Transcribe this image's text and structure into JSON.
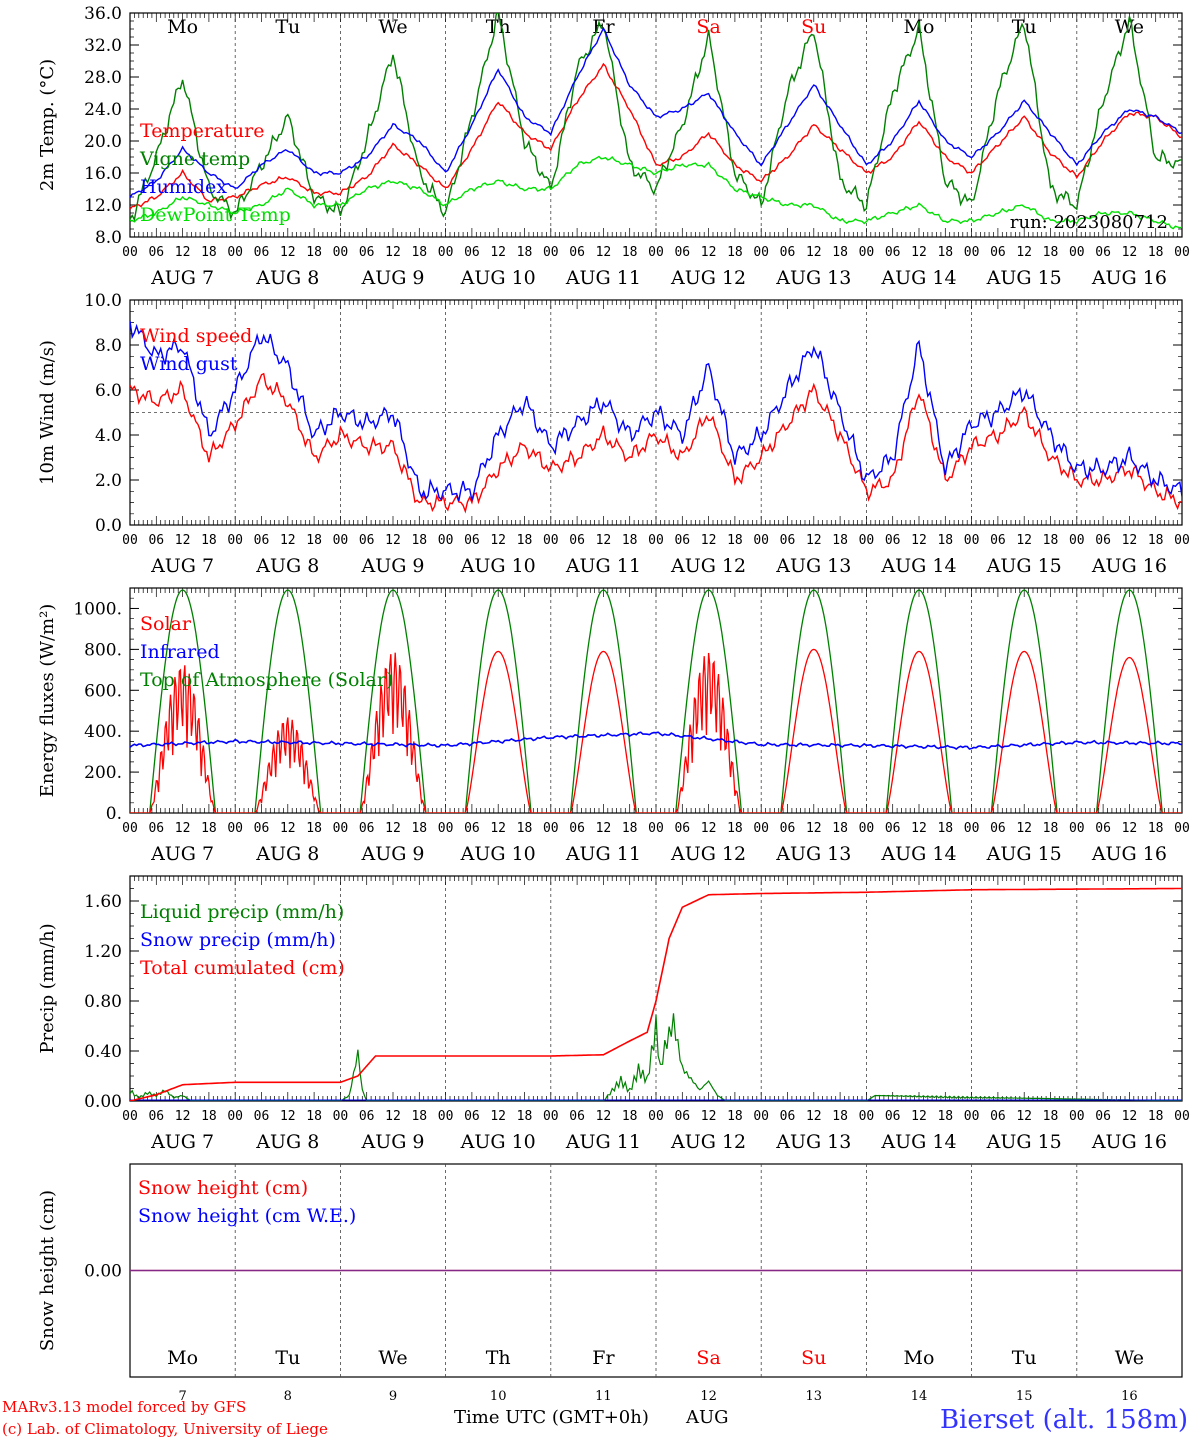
{
  "days": [
    "Mo",
    "Tu",
    "We",
    "Th",
    "Fr",
    "Sa",
    "Su",
    "Mo",
    "Tu",
    "We"
  ],
  "weekend_days": [
    "Sa",
    "Su"
  ],
  "dates": [
    "AUG  7",
    "AUG  8",
    "AUG  9",
    "AUG 10",
    "AUG 11",
    "AUG 12",
    "AUG 13",
    "AUG 14",
    "AUG 15",
    "AUG 16"
  ],
  "day_numbers": [
    "7",
    "8",
    "9",
    "10",
    "11",
    "12",
    "13",
    "14",
    "15",
    "16"
  ],
  "hour_labels": [
    "00",
    "06",
    "12",
    "18"
  ],
  "colors": {
    "red": "#ff0000",
    "green": "#008000",
    "blue": "#0000ff",
    "lime": "#00e000",
    "purple": "#7030a0",
    "weekend": "#ff0000"
  },
  "chart_data": [
    {
      "type": "line",
      "ylabel": "2m Temp. (°C)",
      "ylim": [
        8,
        36
      ],
      "yticks": [
        "8.0",
        "12.0",
        "16.0",
        "20.0",
        "24.0",
        "28.0",
        "32.0",
        "36.0"
      ],
      "annotation": "run: 2023080712",
      "legend": [
        "Temperature",
        "Vigne temp",
        "Humidex",
        "DewPoint Temp"
      ],
      "x_hours": [
        0,
        6,
        12,
        18,
        24,
        30,
        36,
        42,
        48,
        54,
        60,
        66,
        72,
        78,
        84,
        90,
        96,
        102,
        108,
        114,
        120,
        126,
        132,
        138,
        144,
        150,
        156,
        162,
        168,
        174,
        180,
        186,
        192,
        198,
        204,
        210,
        216,
        222,
        228,
        234,
        240
      ],
      "series": [
        {
          "name": "Temperature",
          "color": "red",
          "values": [
            11.5,
            13,
            16,
            12.5,
            13,
            14.5,
            15.5,
            13.5,
            13.5,
            15.5,
            19.5,
            17,
            14,
            19,
            25,
            21,
            19,
            25,
            29.5,
            24,
            17,
            18,
            21,
            17,
            15,
            18,
            22,
            19,
            16,
            18,
            22.5,
            18,
            16,
            19.5,
            23,
            18.5,
            15.5,
            20,
            23.5,
            23,
            20.5
          ]
        },
        {
          "name": "Vigne temp",
          "color": "green",
          "values": [
            10,
            18,
            28,
            14,
            11,
            17,
            23,
            13,
            11,
            20,
            31,
            16,
            11,
            23,
            36,
            20,
            14,
            29,
            35,
            17,
            14,
            22,
            33,
            16,
            12,
            26,
            34,
            15,
            12,
            26,
            34,
            15,
            12,
            26,
            35,
            14,
            12,
            25,
            35,
            18,
            17
          ]
        },
        {
          "name": "Humidex",
          "color": "blue",
          "values": [
            13,
            15,
            19,
            16,
            14,
            17,
            19,
            16,
            16,
            18,
            22,
            20,
            16,
            22,
            29,
            23,
            21,
            28,
            34,
            27,
            23,
            24,
            26,
            21,
            17,
            22,
            27,
            22,
            17,
            20,
            25,
            20,
            18,
            21,
            25,
            21,
            17,
            21,
            24,
            23,
            21
          ]
        },
        {
          "name": "DewPoint Temp",
          "color": "lime",
          "values": [
            10,
            11,
            13,
            12,
            11,
            12,
            14,
            12,
            12,
            14,
            15,
            14,
            12,
            14,
            15,
            14,
            14,
            17,
            18,
            17,
            16,
            17,
            17,
            14,
            13,
            12,
            12,
            10,
            10,
            11,
            12,
            10,
            10,
            11,
            12,
            10,
            10,
            11,
            11,
            10,
            9
          ]
        }
      ]
    },
    {
      "type": "line",
      "ylabel": "10m Wind (m/s)",
      "ylim": [
        0,
        10
      ],
      "yticks": [
        "0.0",
        "2.0",
        "4.0",
        "6.0",
        "8.0",
        "10.0"
      ],
      "reference_line": 5,
      "legend": [
        "Wind speed",
        "Wind gust"
      ],
      "x_hours": [
        0,
        6,
        12,
        18,
        24,
        30,
        36,
        42,
        48,
        54,
        60,
        66,
        72,
        78,
        84,
        90,
        96,
        102,
        108,
        114,
        120,
        126,
        132,
        138,
        144,
        150,
        156,
        162,
        168,
        174,
        180,
        186,
        192,
        198,
        204,
        210,
        216,
        222,
        228,
        234,
        240
      ],
      "series": [
        {
          "name": "Wind speed",
          "color": "red",
          "values": [
            6,
            5.5,
            6,
            3,
            4.5,
            6.5,
            5.5,
            3,
            4,
            3.5,
            3.5,
            1,
            1,
            1,
            2.5,
            3.5,
            2.5,
            3,
            4,
            3,
            4,
            3,
            5,
            2,
            3,
            4.5,
            6,
            4,
            1.5,
            2,
            6,
            2,
            3.5,
            4,
            5,
            3,
            2,
            2,
            2.5,
            1.5,
            1
          ]
        },
        {
          "name": "Wind gust",
          "color": "blue",
          "values": [
            9,
            7.5,
            8,
            4,
            6,
            8.5,
            7,
            4,
            5,
            4.5,
            5,
            1.5,
            1.5,
            1.5,
            4,
            5.5,
            3.5,
            4.5,
            5.5,
            4,
            5,
            4,
            7,
            3,
            4,
            6,
            8,
            5,
            2,
            3,
            8,
            2.5,
            4.5,
            5,
            6,
            4,
            2.5,
            2.5,
            3,
            2,
            1.5
          ]
        }
      ]
    },
    {
      "type": "line",
      "ylabel": "Energy fluxes (W/m²)",
      "ylim": [
        0,
        1100
      ],
      "yticks": [
        "0.",
        "200.",
        "400.",
        "600.",
        "800.",
        "1000."
      ],
      "legend": [
        "Solar",
        "Infrared",
        "Top of Atmosphere (Solar)"
      ],
      "solar_peaks": [
        730,
        470,
        790,
        790,
        790,
        790,
        800,
        790,
        790,
        760
      ],
      "toa_peak": 1090,
      "daylight_hours": [
        4.5,
        19.5
      ],
      "infrared_x_hours": [
        0,
        24,
        48,
        72,
        96,
        120,
        144,
        168,
        192,
        216,
        240
      ],
      "infrared_values": [
        330,
        350,
        340,
        330,
        370,
        390,
        335,
        330,
        320,
        345,
        340
      ],
      "series": [
        {
          "name": "Solar",
          "color": "red"
        },
        {
          "name": "Infrared",
          "color": "blue"
        },
        {
          "name": "Top of Atmosphere (Solar)",
          "color": "green"
        }
      ]
    },
    {
      "type": "line",
      "ylabel": "Precip (mm/h)",
      "ylim": [
        0,
        1.8
      ],
      "yticks": [
        "0.00",
        "0.40",
        "0.80",
        "1.20",
        "1.60"
      ],
      "legend": [
        "Liquid precip (mm/h)",
        "Snow precip (mm/h)",
        "Total cumulated (cm)"
      ],
      "cumulated_x_hours": [
        0,
        6,
        12,
        24,
        48,
        52,
        56,
        96,
        108,
        114,
        118,
        120,
        123,
        126,
        132,
        144,
        168,
        192,
        240
      ],
      "cumulated_values": [
        0,
        0.05,
        0.13,
        0.15,
        0.15,
        0.2,
        0.36,
        0.36,
        0.37,
        0.48,
        0.55,
        0.8,
        1.3,
        1.55,
        1.65,
        1.66,
        1.67,
        1.69,
        1.7
      ],
      "liquid_x_hours": [
        0,
        2,
        4,
        6,
        8,
        10,
        12,
        14,
        48,
        50,
        52,
        53,
        54,
        56,
        108,
        110,
        112,
        114,
        116,
        118,
        120,
        121,
        122,
        124,
        126,
        128,
        130,
        132,
        134,
        136,
        144,
        168,
        170,
        240
      ],
      "liquid_values": [
        0.1,
        0.03,
        0.08,
        0.05,
        0.1,
        0.03,
        0.05,
        0,
        0,
        0.05,
        0.44,
        0.1,
        0,
        0,
        0,
        0.1,
        0.2,
        0.1,
        0.3,
        0.2,
        0.7,
        0.3,
        0.5,
        0.73,
        0.3,
        0.2,
        0.1,
        0.18,
        0.05,
        0,
        0,
        0,
        0.05,
        0
      ],
      "series": [
        {
          "name": "Liquid precip (mm/h)",
          "color": "green"
        },
        {
          "name": "Snow precip (mm/h)",
          "color": "blue"
        },
        {
          "name": "Total cumulated (cm)",
          "color": "red"
        }
      ]
    },
    {
      "type": "line",
      "ylabel": "Snow height (cm)",
      "yticks": [
        "0.00"
      ],
      "legend": [
        "Snow height (cm)",
        "Snow height (cm W.E.)"
      ],
      "series": [
        {
          "name": "Snow height (cm)",
          "color": "red",
          "values": [
            0,
            0
          ]
        },
        {
          "name": "Snow height (cm W.E.)",
          "color": "blue",
          "values": [
            0,
            0
          ]
        }
      ]
    }
  ],
  "footer": {
    "credit_line1": "MARv3.13 model forced by GFS",
    "credit_line2": "(c) Lab. of Climatology, University of Liege",
    "xlabel": "Time UTC (GMT+0h)",
    "month": "AUG",
    "station": "Bierset (alt. 158m)"
  }
}
